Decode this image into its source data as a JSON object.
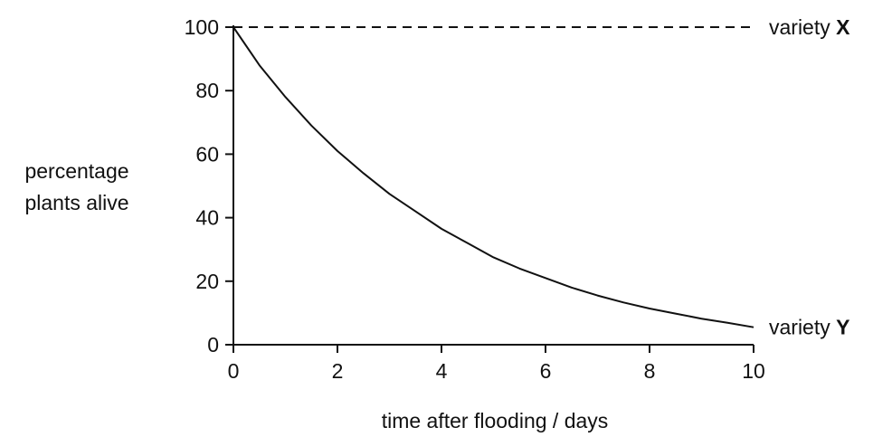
{
  "chart_data": {
    "type": "line",
    "title": "",
    "xlabel": "time after flooding / days",
    "ylabel_line1": "percentage",
    "ylabel_line2": "plants alive",
    "xlim": [
      0,
      10
    ],
    "ylim": [
      0,
      100
    ],
    "xticks": [
      "0",
      "2",
      "4",
      "6",
      "8",
      "10"
    ],
    "yticks": [
      "0",
      "20",
      "40",
      "60",
      "80",
      "100"
    ],
    "grid": false,
    "series": [
      {
        "name": "variety X",
        "label_prefix": "variety ",
        "label_letter": "X",
        "style": "dashed",
        "x": [
          0,
          2,
          4,
          6,
          8,
          10
        ],
        "y": [
          100,
          100,
          100,
          100,
          100,
          100
        ]
      },
      {
        "name": "variety Y",
        "label_prefix": "variety ",
        "label_letter": "Y",
        "style": "solid",
        "x": [
          0,
          0.5,
          1,
          1.5,
          2,
          2.5,
          3,
          3.5,
          4,
          4.5,
          5,
          5.5,
          6,
          6.5,
          7,
          7.5,
          8,
          8.5,
          9,
          9.5,
          10
        ],
        "y": [
          100,
          88,
          78,
          69,
          61,
          54,
          47.5,
          42,
          36.5,
          32,
          27.5,
          24,
          21,
          18,
          15.5,
          13.3,
          11.4,
          9.8,
          8.2,
          6.9,
          5.5
        ]
      }
    ],
    "line_color": "#111111"
  }
}
